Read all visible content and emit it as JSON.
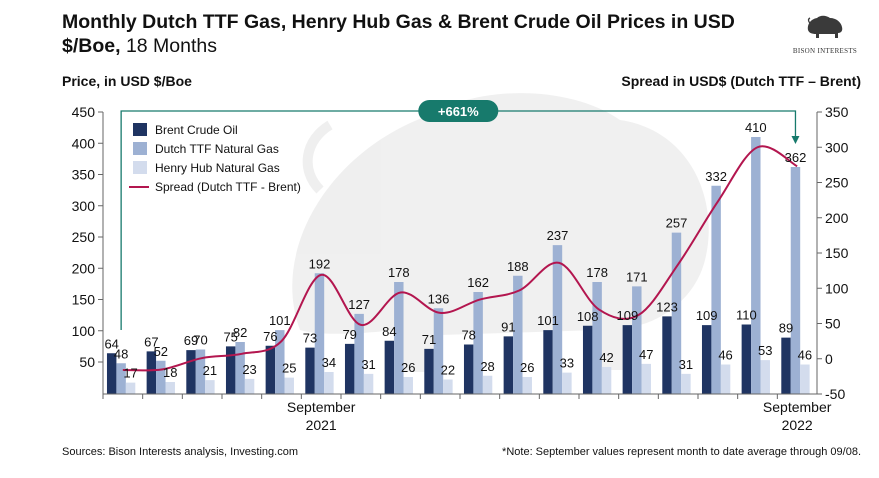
{
  "header": {
    "title_bold": "Monthly Dutch TTF Gas, Henry Hub Gas & Brent Crude Oil Prices in USD $/Boe,",
    "title_rest": " 18 Months",
    "logo_text": "BISON INTERESTS"
  },
  "footer": {
    "sources": "Sources: Bison Interests analysis, Investing.com",
    "note": "*Note: September values represent month to date average through 09/08."
  },
  "chart_data": {
    "type": "bar",
    "ylabel": "Price, in USD $/Boe",
    "y2label": "Spread in USD$ (Dutch TTF – Brent)",
    "ylim": [
      0,
      450
    ],
    "y2lim": [
      -50,
      350
    ],
    "yticks": [
      "450",
      "400",
      "350",
      "300",
      "250",
      "200",
      "150",
      "100",
      "50"
    ],
    "y2ticks": [
      "350",
      "300",
      "250",
      "200",
      "150",
      "100",
      "50",
      "0",
      "-50"
    ],
    "x_labels": [
      {
        "index": 5,
        "line1": "September",
        "line2": "2021"
      },
      {
        "index": 17,
        "line1": "September",
        "line2": "2022"
      }
    ],
    "callout": "+661%",
    "legend": [
      "Brent Crude Oil",
      "Dutch TTF Natural Gas",
      "Henry Hub Natural Gas",
      "Spread (Dutch TTF - Brent)"
    ],
    "colors": {
      "brent": "#1f3462",
      "ttf": "#9db1d3",
      "henry": "#d3dced",
      "spread": "#b3164f",
      "callout": "#177a6c"
    },
    "series": [
      {
        "name": "Brent Crude Oil",
        "values": [
          64,
          67,
          69,
          75,
          76,
          73,
          79,
          84,
          71,
          78,
          91,
          101,
          108,
          109,
          123,
          109,
          110,
          89
        ]
      },
      {
        "name": "Dutch TTF Natural Gas",
        "values": [
          48,
          52,
          70,
          82,
          101,
          192,
          127,
          178,
          136,
          162,
          188,
          237,
          178,
          171,
          257,
          332,
          410,
          362
        ]
      },
      {
        "name": "Henry Hub Natural Gas",
        "values": [
          17,
          18,
          21,
          23,
          25,
          34,
          31,
          26,
          22,
          28,
          26,
          33,
          42,
          47,
          31,
          46,
          53,
          46
        ]
      },
      {
        "name": "Spread (Dutch TTF - Brent)",
        "values": [
          -16,
          -15,
          1,
          7,
          25,
          119,
          48,
          94,
          65,
          84,
          97,
          136,
          70,
          62,
          134,
          223,
          300,
          273
        ]
      }
    ]
  }
}
